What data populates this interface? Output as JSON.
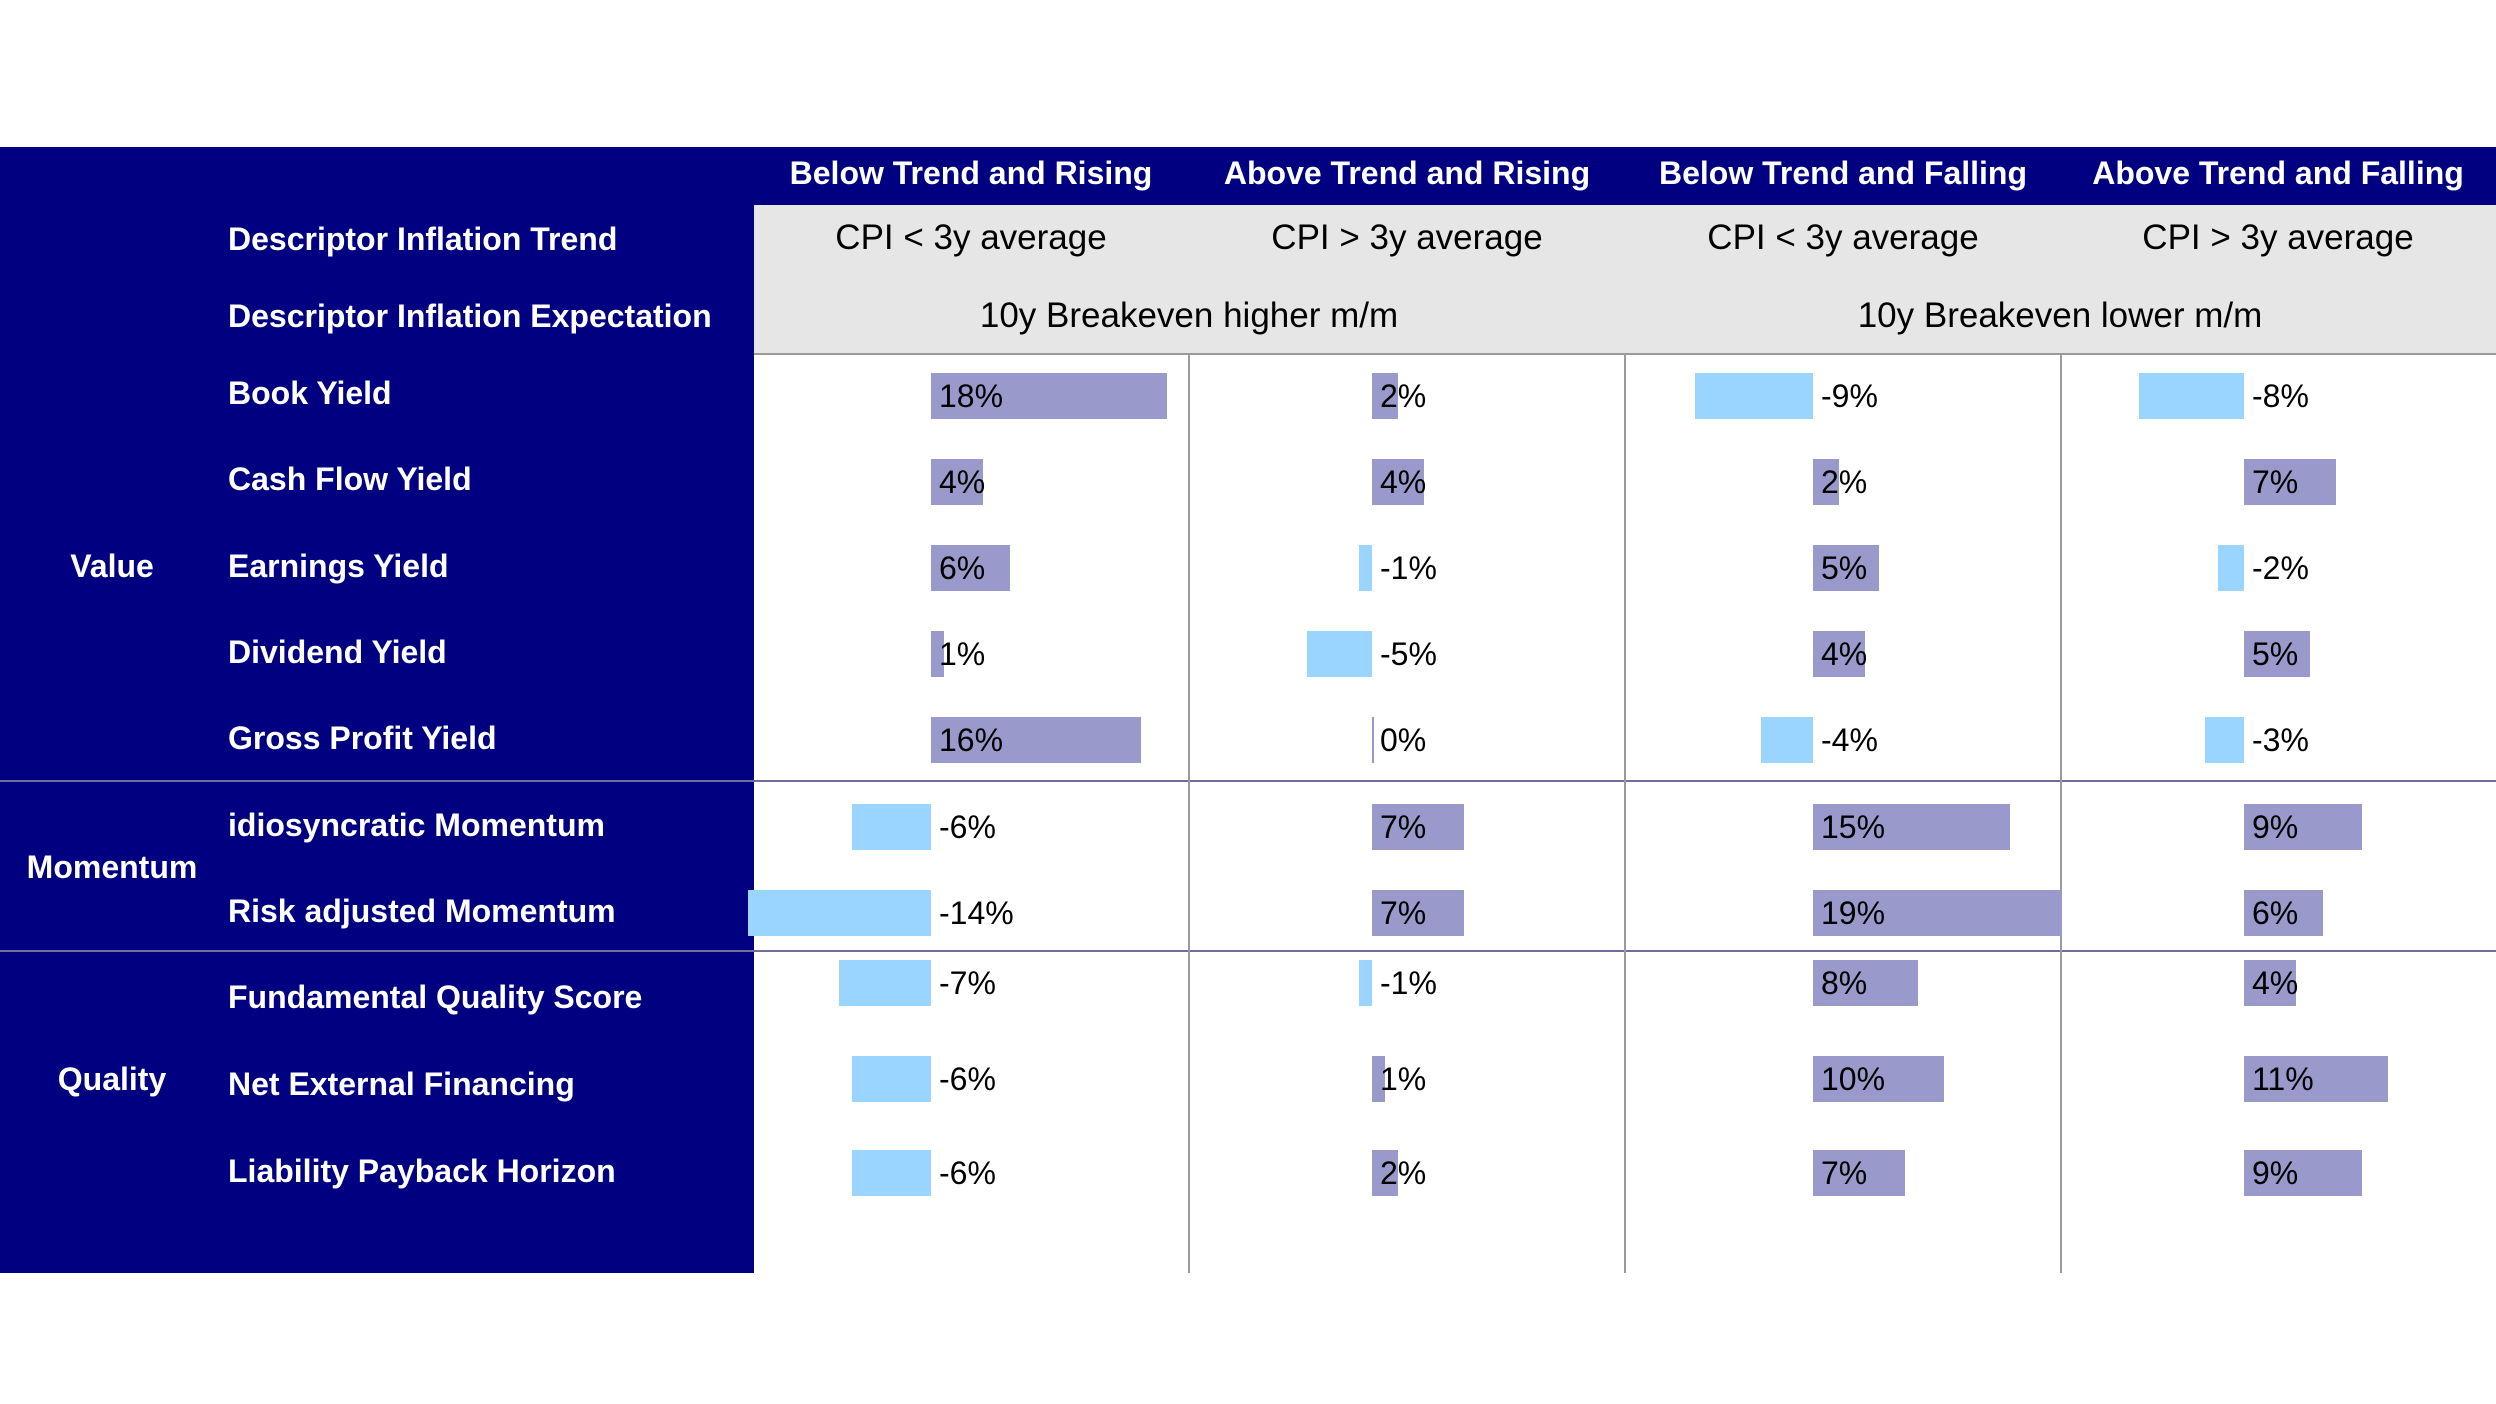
{
  "columns": [
    {
      "regime": "Below Trend and Rising",
      "trend": "CPI < 3y average"
    },
    {
      "regime": "Above Trend and Rising",
      "trend": "CPI > 3y average"
    },
    {
      "regime": "Below Trend and Falling",
      "trend": "CPI < 3y average"
    },
    {
      "regime": "Above Trend and Falling",
      "trend": "CPI > 3y average"
    }
  ],
  "descriptors": {
    "trend_label": "Descriptor Inflation Trend",
    "expectation_label": "Descriptor Inflation Expectation",
    "expectations": [
      "10y Breakeven higher m/m",
      "10y Breakeven lower m/m"
    ]
  },
  "groups": [
    {
      "name": "Value",
      "factors": [
        "Book Yield",
        "Cash Flow Yield",
        "Earnings Yield",
        "Dividend Yield",
        "Gross Profit Yield"
      ]
    },
    {
      "name": "Momentum",
      "factors": [
        "idiosyncratic Momentum",
        "Risk adjusted Momentum"
      ]
    },
    {
      "name": "Quality",
      "factors": [
        "Fundamental Quality Score",
        "Net External Financing",
        "Liability Payback Horizon"
      ]
    }
  ],
  "colors": {
    "header_bg": "#000080",
    "descriptor_bg": "#e6e6e6",
    "positive_bar": "#9999cc",
    "negative_bar": "#99d5ff"
  },
  "chart_data": {
    "type": "bar",
    "orientation": "horizontal",
    "unit": "%",
    "categories": [
      "Book Yield",
      "Cash Flow Yield",
      "Earnings Yield",
      "Dividend Yield",
      "Gross Profit Yield",
      "idiosyncratic Momentum",
      "Risk adjusted Momentum",
      "Fundamental Quality Score",
      "Net External Financing",
      "Liability Payback Horizon"
    ],
    "series": [
      {
        "name": "Below Trend and Rising",
        "values": [
          18,
          4,
          6,
          1,
          16,
          -6,
          -14,
          -7,
          -6,
          -6
        ]
      },
      {
        "name": "Above Trend and Rising",
        "values": [
          2,
          4,
          -1,
          -5,
          0,
          7,
          7,
          -1,
          1,
          2
        ]
      },
      {
        "name": "Below Trend and Falling",
        "values": [
          -9,
          2,
          5,
          4,
          -4,
          15,
          19,
          8,
          10,
          7
        ]
      },
      {
        "name": "Above Trend and Falling",
        "values": [
          -8,
          7,
          -2,
          5,
          -3,
          9,
          6,
          4,
          11,
          9
        ]
      }
    ]
  }
}
